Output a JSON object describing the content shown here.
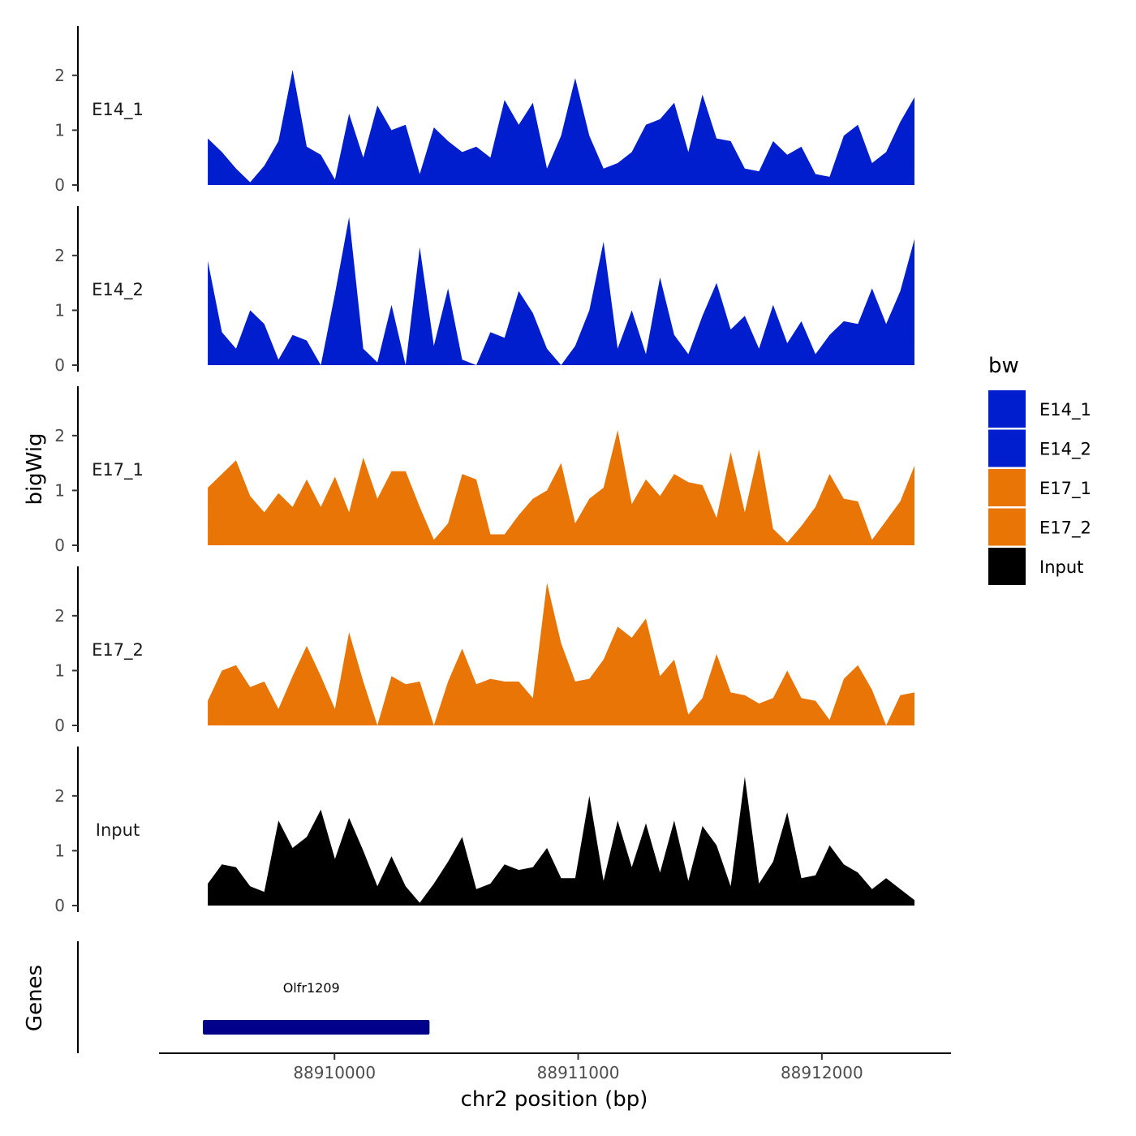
{
  "chart_data": {
    "type": "area",
    "x": [
      0,
      0.02,
      0.04,
      0.06,
      0.08,
      0.1,
      0.12,
      0.14,
      0.16,
      0.18,
      0.2,
      0.22,
      0.24,
      0.26,
      0.28,
      0.3,
      0.32,
      0.34,
      0.36,
      0.38,
      0.4,
      0.42,
      0.44,
      0.46,
      0.48,
      0.5,
      0.52,
      0.54,
      0.56,
      0.58,
      0.6,
      0.62,
      0.64,
      0.66,
      0.68,
      0.7,
      0.72,
      0.74,
      0.76,
      0.78,
      0.8,
      0.82,
      0.84,
      0.86,
      0.88,
      0.9,
      0.92,
      0.94,
      0.96,
      0.98,
      1.0
    ],
    "x_range_bp": [
      88909480,
      88912380
    ],
    "xlim_bp": [
      88909280,
      88912530
    ],
    "x_ticks": [
      {
        "value": 88910000,
        "label": "88910000"
      },
      {
        "value": 88911000,
        "label": "88911000"
      },
      {
        "value": 88912000,
        "label": "88912000"
      }
    ],
    "xlabel": "chr2 position (bp)",
    "ylabel": "bigWig",
    "ylim": [
      0,
      2.9
    ],
    "y_ticks": [
      {
        "value": 0,
        "label": "0"
      },
      {
        "value": 1,
        "label": "1"
      },
      {
        "value": 2,
        "label": "2"
      }
    ],
    "series": [
      {
        "name": "E14_1",
        "color": "#001ecd",
        "values": [
          0.85,
          0.6,
          0.3,
          0.05,
          0.35,
          0.8,
          2.1,
          0.7,
          0.55,
          0.1,
          1.3,
          0.5,
          1.45,
          1.0,
          1.1,
          0.2,
          1.05,
          0.8,
          0.6,
          0.7,
          0.5,
          1.55,
          1.1,
          1.5,
          0.3,
          0.9,
          1.95,
          0.9,
          0.3,
          0.4,
          0.6,
          1.1,
          1.2,
          1.5,
          0.6,
          1.65,
          0.85,
          0.8,
          0.3,
          0.25,
          0.8,
          0.55,
          0.7,
          0.2,
          0.15,
          0.9,
          1.1,
          0.4,
          0.6,
          1.15,
          1.6
        ]
      },
      {
        "name": "E14_2",
        "color": "#001ecd",
        "values": [
          1.9,
          0.6,
          0.3,
          1.0,
          0.75,
          0.1,
          0.55,
          0.45,
          0.0,
          1.3,
          2.7,
          0.3,
          0.05,
          1.1,
          0.0,
          2.15,
          0.35,
          1.4,
          0.1,
          0.0,
          0.6,
          0.5,
          1.35,
          0.95,
          0.3,
          0.0,
          0.35,
          1.0,
          2.25,
          0.3,
          1.0,
          0.2,
          1.6,
          0.55,
          0.2,
          0.9,
          1.5,
          0.65,
          0.9,
          0.3,
          1.1,
          0.4,
          0.8,
          0.2,
          0.55,
          0.8,
          0.75,
          1.4,
          0.75,
          1.35,
          2.3
        ]
      },
      {
        "name": "E17_1",
        "color": "#e87505",
        "values": [
          1.05,
          1.3,
          1.55,
          0.9,
          0.6,
          0.95,
          0.7,
          1.2,
          0.7,
          1.25,
          0.6,
          1.6,
          0.85,
          1.35,
          1.35,
          0.7,
          0.1,
          0.4,
          1.3,
          1.2,
          0.2,
          0.2,
          0.55,
          0.85,
          1.0,
          1.5,
          0.4,
          0.85,
          1.05,
          2.1,
          0.75,
          1.2,
          0.9,
          1.3,
          1.15,
          1.1,
          0.5,
          1.7,
          0.6,
          1.75,
          0.3,
          0.05,
          0.35,
          0.7,
          1.3,
          0.85,
          0.8,
          0.1,
          0.45,
          0.8,
          1.45
        ]
      },
      {
        "name": "E17_2",
        "color": "#e87505",
        "values": [
          0.45,
          1.0,
          1.1,
          0.7,
          0.8,
          0.3,
          0.9,
          1.45,
          0.9,
          0.3,
          1.7,
          0.8,
          0.0,
          0.9,
          0.75,
          0.8,
          0.0,
          0.8,
          1.4,
          0.75,
          0.85,
          0.8,
          0.8,
          0.5,
          2.6,
          1.5,
          0.8,
          0.85,
          1.2,
          1.8,
          1.6,
          1.95,
          0.9,
          1.2,
          0.2,
          0.5,
          1.3,
          0.6,
          0.55,
          0.4,
          0.5,
          1.0,
          0.5,
          0.45,
          0.1,
          0.85,
          1.1,
          0.65,
          0.0,
          0.55,
          0.6
        ]
      },
      {
        "name": "Input",
        "color": "#000000",
        "values": [
          0.4,
          0.75,
          0.7,
          0.35,
          0.25,
          1.55,
          1.05,
          1.25,
          1.75,
          0.85,
          1.6,
          1.0,
          0.35,
          0.9,
          0.35,
          0.05,
          0.4,
          0.8,
          1.25,
          0.3,
          0.4,
          0.75,
          0.65,
          0.7,
          1.05,
          0.5,
          0.5,
          2.0,
          0.45,
          1.55,
          0.7,
          1.5,
          0.6,
          1.55,
          0.45,
          1.45,
          1.1,
          0.35,
          2.35,
          0.4,
          0.8,
          1.7,
          0.5,
          0.55,
          1.1,
          0.75,
          0.6,
          0.3,
          0.5,
          0.3,
          0.1
        ]
      }
    ],
    "gene_track": {
      "label": "Genes",
      "genes": [
        {
          "name": "Olfr1209",
          "start": 88909460,
          "end": 88910390,
          "color": "#00008b"
        }
      ]
    },
    "legend": {
      "title": "bw",
      "position": "right"
    }
  }
}
